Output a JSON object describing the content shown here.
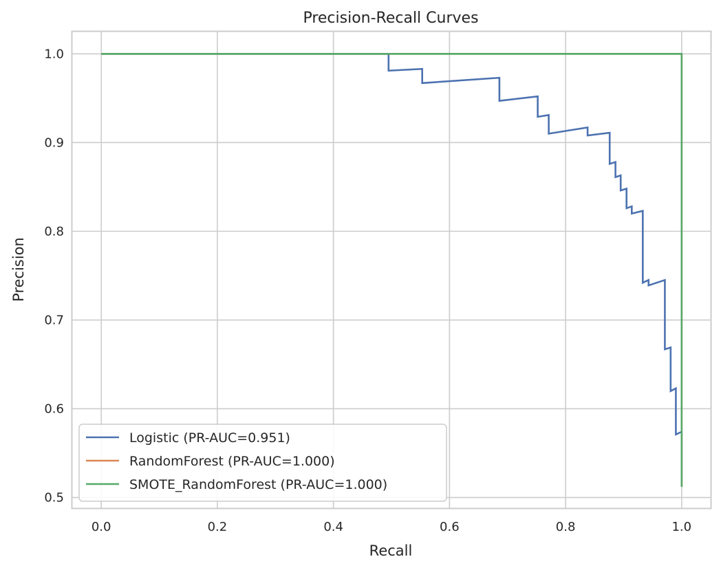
{
  "chart_data": {
    "type": "line",
    "title": "Precision-Recall Curves",
    "xlabel": "Recall",
    "ylabel": "Precision",
    "xlim": [
      -0.05,
      1.05
    ],
    "ylim": [
      0.488,
      1.025
    ],
    "xticks": [
      "0.0",
      "0.2",
      "0.4",
      "0.6",
      "0.8",
      "1.0"
    ],
    "yticks": [
      "0.5",
      "0.6",
      "0.7",
      "0.8",
      "0.9",
      "1.0"
    ],
    "grid": true,
    "legend_position": "lower-left",
    "series": [
      {
        "name": "Logistic (PR-AUC=0.951)",
        "color": "#4c72b0",
        "x": [
          0.0,
          0.495,
          0.495,
          0.553,
          0.553,
          0.686,
          0.686,
          0.752,
          0.752,
          0.771,
          0.771,
          0.838,
          0.838,
          0.876,
          0.876,
          0.886,
          0.886,
          0.895,
          0.895,
          0.905,
          0.905,
          0.914,
          0.914,
          0.933,
          0.933,
          0.943,
          0.943,
          0.971,
          0.971,
          0.981,
          0.981,
          0.99,
          0.99,
          1.0,
          1.0
        ],
        "y": [
          1.0,
          1.0,
          0.981,
          0.983,
          0.967,
          0.973,
          0.947,
          0.952,
          0.929,
          0.931,
          0.91,
          0.917,
          0.908,
          0.911,
          0.876,
          0.878,
          0.861,
          0.863,
          0.846,
          0.848,
          0.826,
          0.828,
          0.82,
          0.823,
          0.742,
          0.745,
          0.739,
          0.745,
          0.667,
          0.669,
          0.62,
          0.623,
          0.571,
          0.574,
          0.512
        ]
      },
      {
        "name": "RandomForest (PR-AUC=1.000)",
        "color": "#dd8452",
        "x": [
          0.0,
          1.0,
          1.0
        ],
        "y": [
          1.0,
          1.0,
          0.512
        ]
      },
      {
        "name": "SMOTE_RandomForest (PR-AUC=1.000)",
        "color": "#55a868",
        "x": [
          0.0,
          1.0,
          1.0
        ],
        "y": [
          1.0,
          1.0,
          0.512
        ]
      }
    ]
  }
}
